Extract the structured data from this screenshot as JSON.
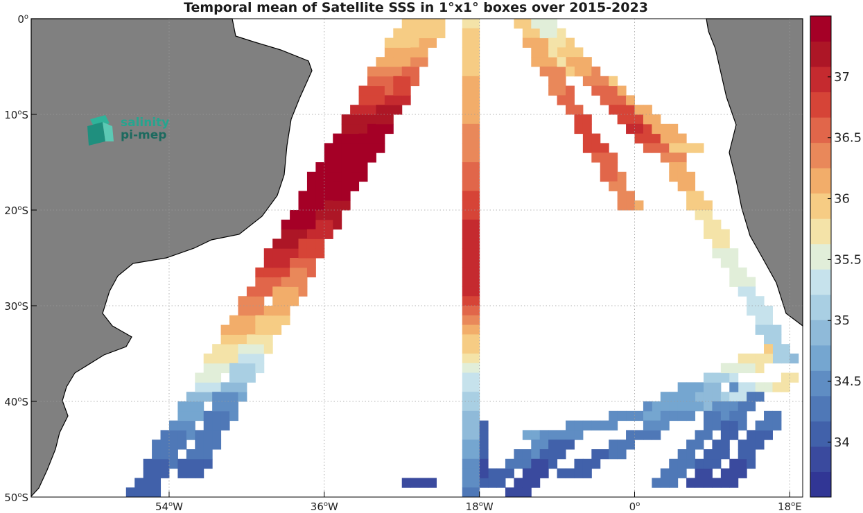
{
  "chart_data": {
    "type": "heatmap",
    "title": "Temporal mean of Satellite SSS in 1°x1° boxes over 2015-2023",
    "x_ticks": [
      {
        "value": -54,
        "label": "54",
        "unit": "W"
      },
      {
        "value": -36,
        "label": "36",
        "unit": "W"
      },
      {
        "value": -18,
        "label": "18",
        "unit": "W"
      },
      {
        "value": 0,
        "label": "0",
        "unit": ""
      },
      {
        "value": 18,
        "label": "18",
        "unit": "E"
      }
    ],
    "y_ticks": [
      {
        "value": 0,
        "label": "0",
        "unit": ""
      },
      {
        "value": -10,
        "label": "10",
        "unit": "S"
      },
      {
        "value": -20,
        "label": "20",
        "unit": "S"
      },
      {
        "value": -30,
        "label": "30",
        "unit": "S"
      },
      {
        "value": -40,
        "label": "40",
        "unit": "S"
      },
      {
        "value": -50,
        "label": "50",
        "unit": "S"
      }
    ],
    "xlim": [
      -70,
      19.5
    ],
    "ylim": [
      -50,
      0
    ],
    "grid": true,
    "colorbar": {
      "range": [
        33.55,
        37.5
      ],
      "ticks": [
        "34",
        "34.5",
        "35",
        "35.5",
        "36",
        "36.5",
        "37"
      ],
      "colors": [
        "#313695",
        "#3a4a9e",
        "#4161aa",
        "#4f78b7",
        "#5f8dc3",
        "#75a6d0",
        "#8fbad9",
        "#a9cfe3",
        "#c6e2ec",
        "#e1eed9",
        "#f4e3a8",
        "#f6cc84",
        "#f2ad6a",
        "#e9885a",
        "#e1664a",
        "#d64437",
        "#c52a2f",
        "#ad1626",
        "#a50026"
      ]
    },
    "tracks": [
      {
        "name": "sw",
        "start": [
          -57,
          -50
        ],
        "end": [
          -25,
          0
        ],
        "width": 2.5,
        "pts": [
          [
            0,
            34
          ],
          [
            0.12,
            34.3
          ],
          [
            0.2,
            34.9
          ],
          [
            0.25,
            35.5
          ],
          [
            0.33,
            36.0
          ],
          [
            0.42,
            36.5
          ],
          [
            0.5,
            37.0
          ],
          [
            0.57,
            37.35
          ],
          [
            0.7,
            37.45
          ],
          [
            0.78,
            37.25
          ],
          [
            0.85,
            36.6
          ],
          [
            0.92,
            36.1
          ],
          [
            1,
            35.8
          ]
        ]
      },
      {
        "name": "nw",
        "start": [
          -52,
          -48
        ],
        "end": [
          -23,
          0
        ],
        "width": 2,
        "pts": [
          [
            0,
            34.1
          ],
          [
            0.15,
            34.4
          ],
          [
            0.22,
            35.1
          ],
          [
            0.3,
            35.8
          ],
          [
            0.4,
            36.2
          ],
          [
            0.5,
            36.8
          ],
          [
            0.6,
            37.3
          ],
          [
            0.75,
            37.4
          ],
          [
            0.85,
            36.8
          ],
          [
            0.92,
            36.2
          ],
          [
            1,
            35.9
          ]
        ]
      },
      {
        "name": "center",
        "start": [
          -19,
          0
        ],
        "end": [
          -19,
          -50
        ],
        "width": 1,
        "pts": [
          [
            0,
            35.8
          ],
          [
            0.05,
            35.9
          ],
          [
            0.1,
            36.0
          ],
          [
            0.2,
            36.2
          ],
          [
            0.3,
            36.5
          ],
          [
            0.42,
            36.9
          ],
          [
            0.52,
            37.1
          ],
          [
            0.58,
            37.0
          ],
          [
            0.62,
            36.5
          ],
          [
            0.66,
            36.0
          ],
          [
            0.7,
            35.8
          ],
          [
            0.75,
            35.3
          ],
          [
            0.82,
            35.0
          ],
          [
            0.9,
            34.7
          ],
          [
            1,
            34.3
          ]
        ]
      },
      {
        "name": "e1",
        "start": [
          -13,
          0
        ],
        "end": [
          0,
          -20
        ],
        "width": 1.5,
        "pts": [
          [
            0,
            35.9
          ],
          [
            0.2,
            36.2
          ],
          [
            0.4,
            36.5
          ],
          [
            0.6,
            36.8
          ],
          [
            0.8,
            36.5
          ],
          [
            1,
            36.2
          ]
        ]
      },
      {
        "name": "e2",
        "start": [
          -11,
          0
        ],
        "end": [
          3,
          -14
        ],
        "width": 1,
        "pts": [
          [
            0,
            35.4
          ],
          [
            0.2,
            35.9
          ],
          [
            0.4,
            36.3
          ],
          [
            0.6,
            36.6
          ],
          [
            0.8,
            36.9
          ],
          [
            1,
            36.5
          ]
        ]
      },
      {
        "name": "e3",
        "start": [
          -9,
          -3
        ],
        "end": [
          6,
          -14
        ],
        "width": 2,
        "pts": [
          [
            0,
            35.6
          ],
          [
            0.3,
            36.0
          ],
          [
            0.6,
            36.2
          ],
          [
            1,
            36.0
          ]
        ]
      },
      {
        "name": "e4",
        "start": [
          3,
          -12
        ],
        "end": [
          18,
          -36
        ],
        "width": 1.5,
        "pts": [
          [
            0,
            36.5
          ],
          [
            0.15,
            36.2
          ],
          [
            0.3,
            35.9
          ],
          [
            0.5,
            35.6
          ],
          [
            0.7,
            35.4
          ],
          [
            0.85,
            35.2
          ],
          [
            1,
            35.0
          ]
        ]
      },
      {
        "name": "s1",
        "start": [
          -12,
          -44
        ],
        "end": [
          18,
          -38
        ],
        "width": 1.5,
        "pts": [
          [
            0,
            34.6
          ],
          [
            0.3,
            34.5
          ],
          [
            0.6,
            34.7
          ],
          [
            0.8,
            35.3
          ],
          [
            1,
            35.8
          ]
        ]
      },
      {
        "name": "s2",
        "start": [
          0,
          -42
        ],
        "end": [
          16,
          -35
        ],
        "width": 2,
        "pts": [
          [
            0,
            34.4
          ],
          [
            0.4,
            34.7
          ],
          [
            0.7,
            35.5
          ],
          [
            1,
            36.0
          ]
        ]
      },
      {
        "name": "s3",
        "start": [
          -8,
          -48
        ],
        "end": [
          8,
          -40
        ],
        "width": 1.5,
        "pts": [
          [
            0,
            34.0
          ],
          [
            0.5,
            34.3
          ],
          [
            1,
            34.6
          ]
        ]
      },
      {
        "name": "s4",
        "start": [
          3,
          -49
        ],
        "end": [
          12,
          -39
        ],
        "width": 1,
        "pts": [
          [
            0,
            34.2
          ],
          [
            0.5,
            34.3
          ],
          [
            1,
            34.5
          ]
        ]
      },
      {
        "name": "s5",
        "start": [
          7,
          -49
        ],
        "end": [
          14,
          -39
        ],
        "width": 1,
        "pts": [
          [
            0,
            33.9
          ],
          [
            0.5,
            34.1
          ],
          [
            1,
            34.4
          ]
        ]
      },
      {
        "name": "s6",
        "start": [
          10,
          -49
        ],
        "end": [
          16,
          -42
        ],
        "width": 1,
        "pts": [
          [
            0,
            33.8
          ],
          [
            0.5,
            34.0
          ],
          [
            1,
            34.3
          ]
        ]
      },
      {
        "name": "s7",
        "start": [
          -17,
          -49
        ],
        "end": [
          -10,
          -44
        ],
        "width": 1.5,
        "pts": [
          [
            0,
            34.0
          ],
          [
            0.5,
            34.3
          ],
          [
            1,
            34.6
          ]
        ]
      },
      {
        "name": "s8",
        "start": [
          -14,
          -50
        ],
        "end": [
          -8,
          -44
        ],
        "width": 1,
        "pts": [
          [
            0,
            33.8
          ],
          [
            1,
            34.1
          ]
        ]
      },
      {
        "name": "s9",
        "start": [
          -26,
          -49
        ],
        "end": [
          -24,
          -49
        ],
        "width": 1,
        "pts": [
          [
            0,
            33.8
          ],
          [
            1,
            33.8
          ]
        ]
      },
      {
        "name": "s10",
        "start": [
          -18,
          -43
        ],
        "end": [
          -18,
          -49
        ],
        "width": 1,
        "pts": [
          [
            0,
            34.1
          ],
          [
            1,
            33.8
          ]
        ]
      }
    ]
  },
  "logo": {
    "line1": "salinity",
    "line2": "pi-mep"
  }
}
